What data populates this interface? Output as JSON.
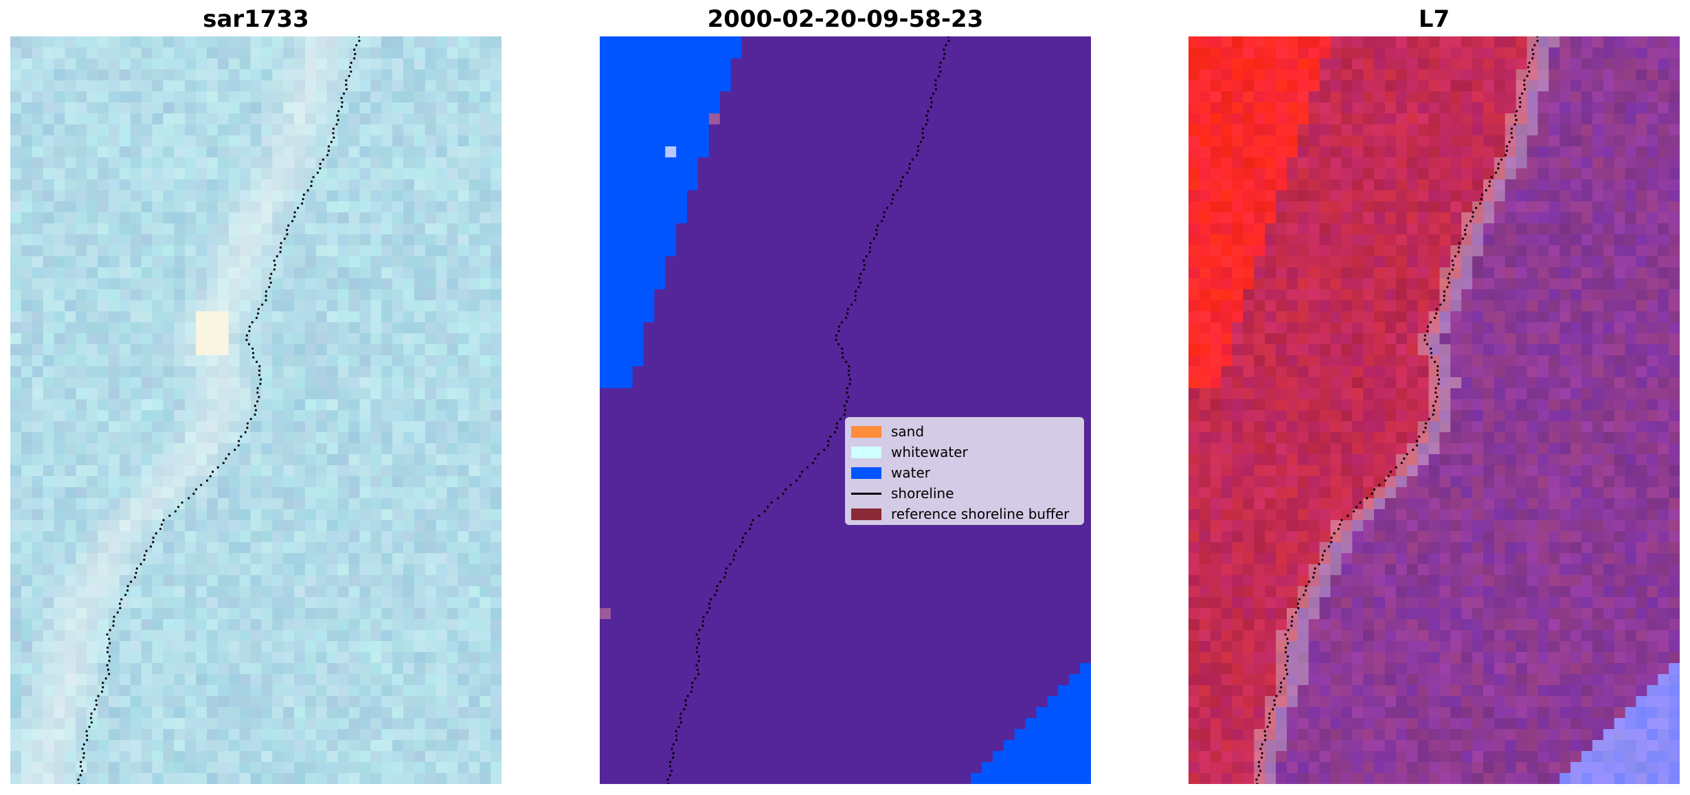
{
  "panels": [
    {
      "title": "sar1733"
    },
    {
      "title": "2000-02-20-09-58-23"
    },
    {
      "title": "L7"
    }
  ],
  "legend": {
    "items": [
      {
        "label": "sand",
        "color": "#ff8c3a"
      },
      {
        "label": "whitewater",
        "color": "#d0ffff"
      },
      {
        "label": "water",
        "color": "#0055ff"
      },
      {
        "label": "shoreline",
        "color": "#000000"
      },
      {
        "label": "reference shoreline buffer",
        "color": "#8a2a36"
      }
    ]
  },
  "colors": {
    "sar_base": "#b2dce8",
    "class_background": "#55269a",
    "class_water": "#0055ff",
    "l7_land": "#c22b55",
    "l7_sea": "#8c3a96",
    "l7_beach": "#ff2a2a",
    "l7_water": "#8a8cff"
  }
}
